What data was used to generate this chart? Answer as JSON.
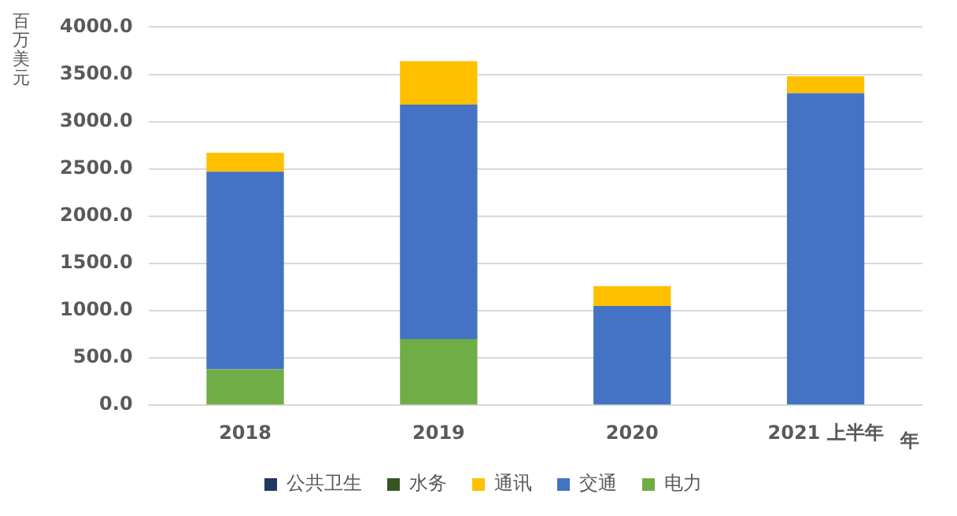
{
  "chart_data": {
    "type": "bar",
    "stacked": true,
    "xlabel": "年",
    "ylabel": "百万美元",
    "categories": [
      "2018",
      "2019",
      "2020",
      "2021 上半年"
    ],
    "series": [
      {
        "name": "电力",
        "color": "#70ad47",
        "values": [
          380,
          700,
          0,
          0
        ]
      },
      {
        "name": "交通",
        "color": "#4472c4",
        "values": [
          2090,
          2480,
          1050,
          3300
        ]
      },
      {
        "name": "通讯",
        "color": "#ffc000",
        "values": [
          200,
          460,
          210,
          180
        ]
      },
      {
        "name": "水务",
        "color": "#375623",
        "values": [
          0,
          0,
          0,
          0
        ]
      },
      {
        "name": "公共卫生",
        "color": "#203864",
        "values": [
          0,
          0,
          0,
          0
        ]
      }
    ],
    "ylim": [
      0,
      4000
    ],
    "yticks": [
      {
        "value": 0,
        "label": "0.0"
      },
      {
        "value": 500,
        "label": "500.0"
      },
      {
        "value": 1000,
        "label": "1000.0"
      },
      {
        "value": 1500,
        "label": "1500.0"
      },
      {
        "value": 2000,
        "label": "2000.0"
      },
      {
        "value": 2500,
        "label": "2500.0"
      },
      {
        "value": 3000,
        "label": "3000.0"
      },
      {
        "value": 3500,
        "label": "3500.0"
      },
      {
        "value": 4000,
        "label": "4000.0"
      }
    ],
    "grid": "y",
    "legend": "bottom"
  }
}
